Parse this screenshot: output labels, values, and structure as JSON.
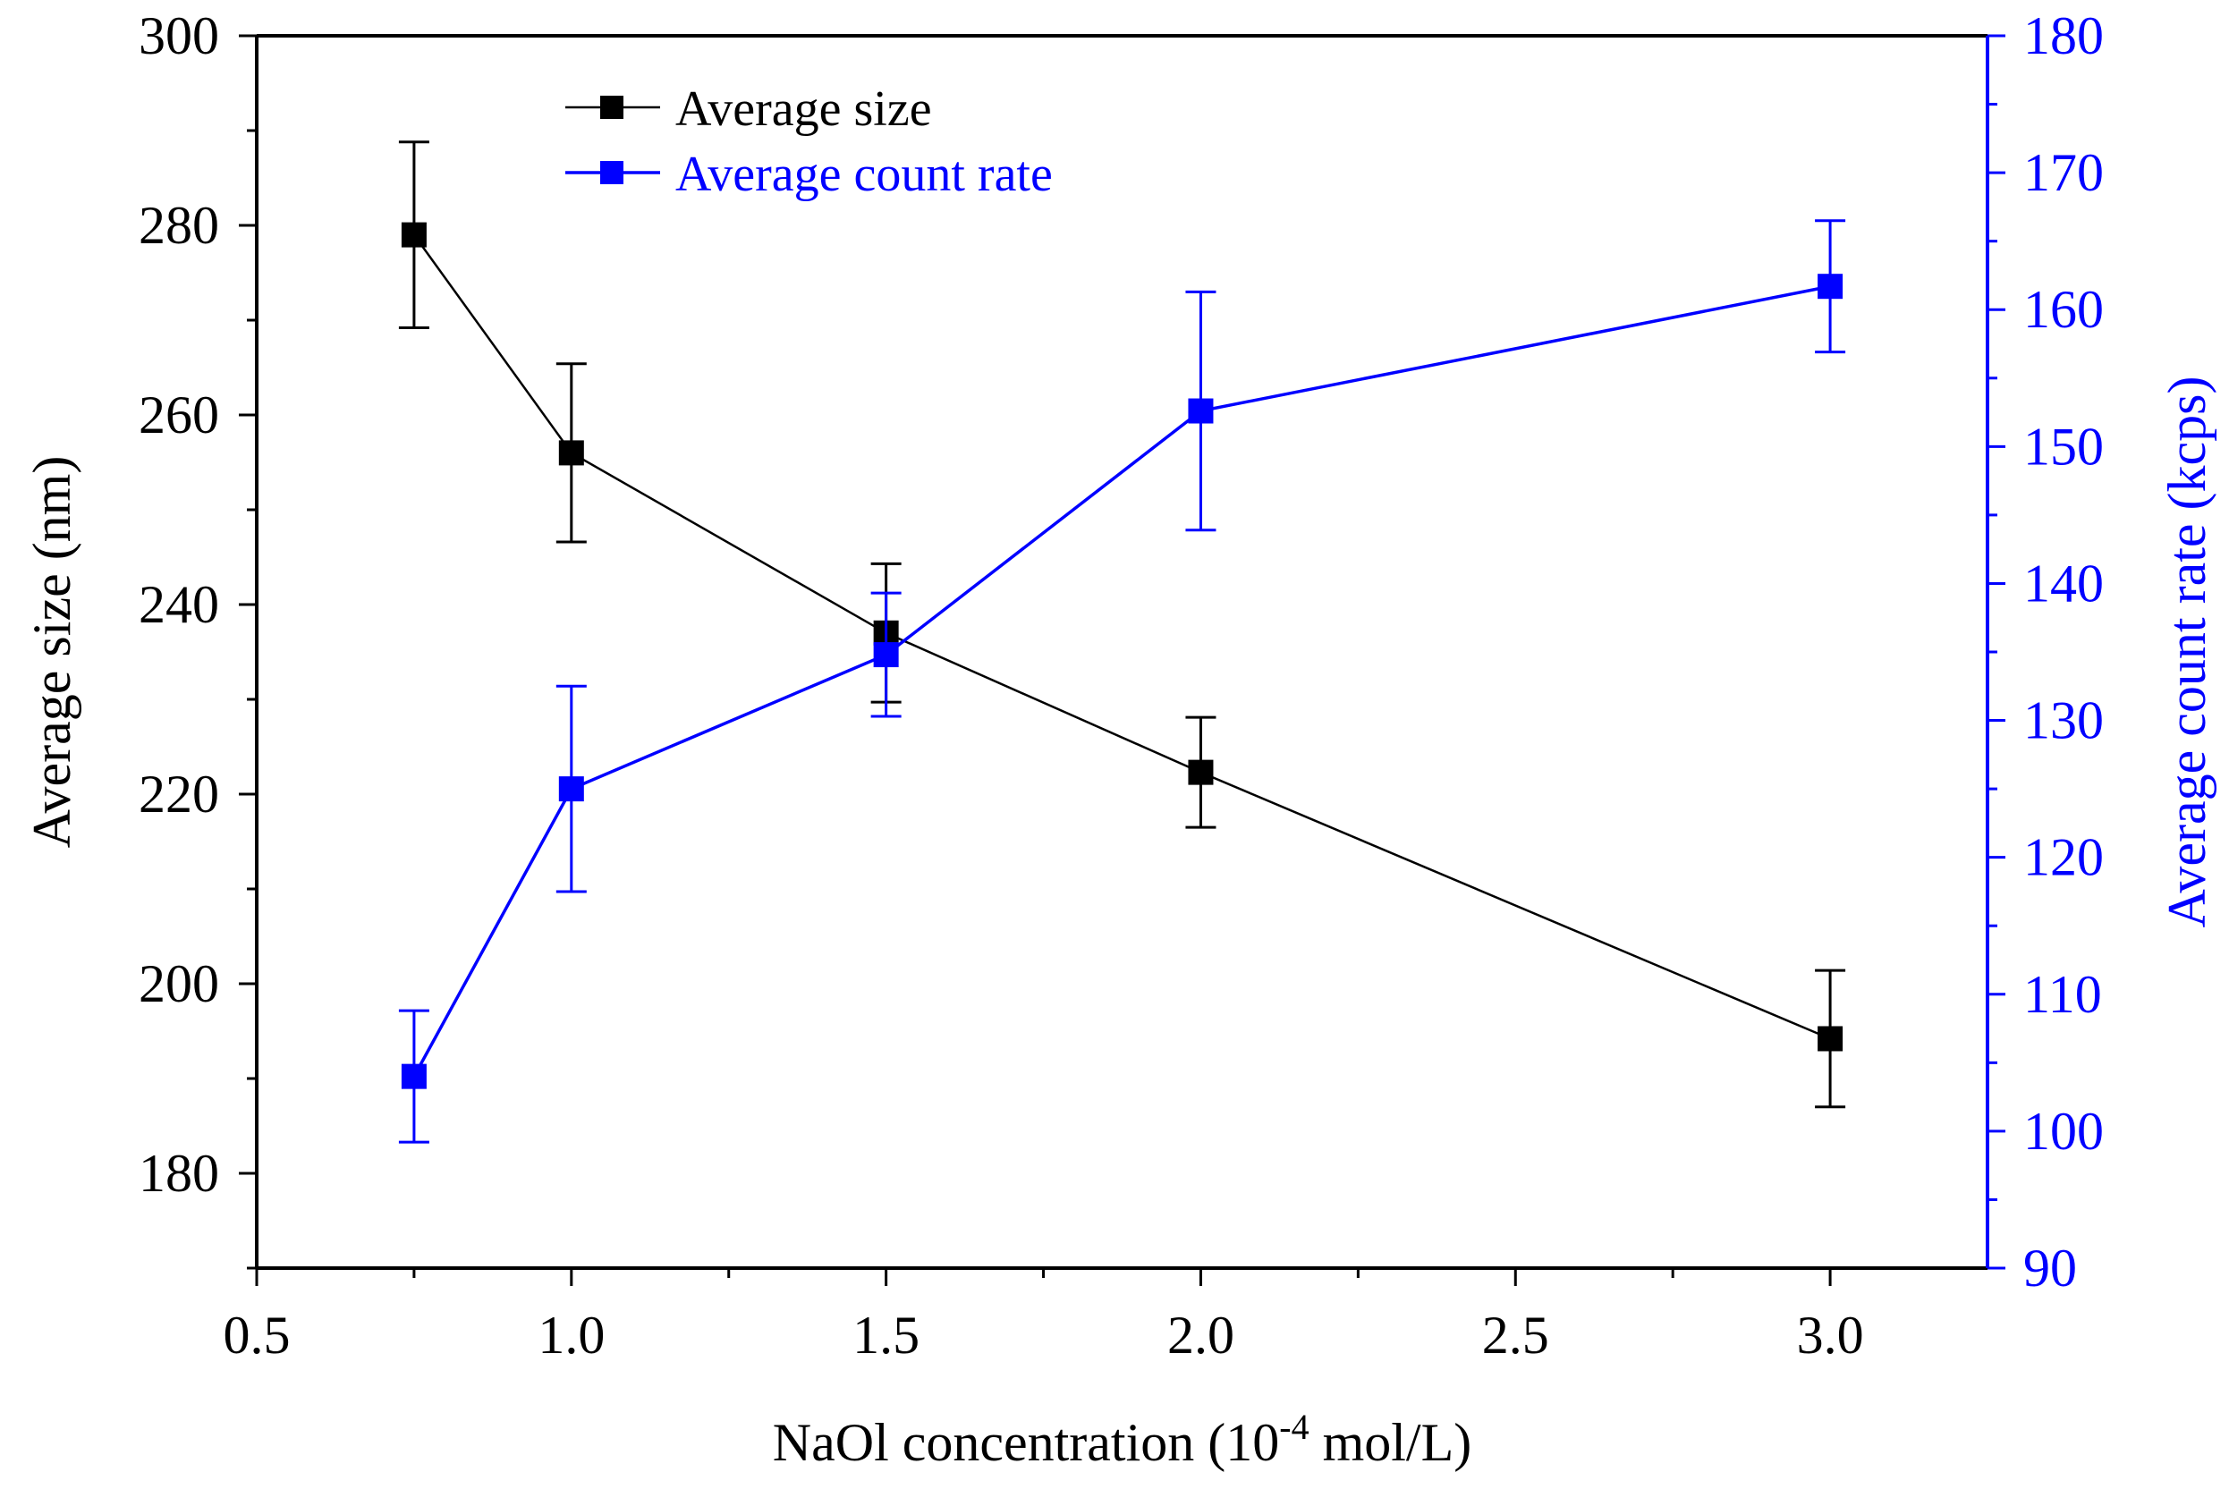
{
  "chart_data": {
    "type": "line",
    "title": "",
    "xlabel": "NaOl concentration (10",
    "xlabel_sup": "-4",
    "xlabel_suffix": " mol/L)",
    "ylabel": "Average size (nm)",
    "y2label": "Average count rate (kcps)",
    "xlim": [
      0.5,
      3.25
    ],
    "ylim": [
      170,
      300
    ],
    "y2lim": [
      90,
      180
    ],
    "xticks": [
      0.5,
      1.0,
      1.5,
      2.0,
      2.5,
      3.0
    ],
    "xtick_labels": [
      "0.5",
      "1.0",
      "1.5",
      "2.0",
      "2.5",
      "3.0"
    ],
    "yticks": [
      180,
      200,
      220,
      240,
      260,
      280,
      300
    ],
    "ytick_labels": [
      "180",
      "200",
      "220",
      "240",
      "260",
      "280",
      "300"
    ],
    "y2ticks": [
      90,
      100,
      110,
      120,
      130,
      140,
      150,
      160,
      170,
      180
    ],
    "y2tick_labels": [
      "90",
      "100",
      "110",
      "120",
      "130",
      "140",
      "150",
      "160",
      "170",
      "180"
    ],
    "grid": false,
    "legend_position": "top-left",
    "series": [
      {
        "name": "Average size",
        "axis": "left",
        "color": "#000000",
        "x": [
          0.75,
          1.0,
          1.5,
          2.0,
          3.0
        ],
        "y": [
          279,
          256,
          237,
          222.3,
          194.2
        ],
        "err": [
          9.8,
          9.4,
          7.3,
          5.8,
          7.2
        ]
      },
      {
        "name": "Average count rate",
        "axis": "right",
        "color": "#0000ff",
        "x": [
          0.75,
          1.0,
          1.5,
          2.0,
          3.0
        ],
        "y": [
          104,
          125,
          134.8,
          152.6,
          161.7
        ],
        "err": [
          4.8,
          7.5,
          4.5,
          8.7,
          4.8
        ]
      }
    ]
  }
}
